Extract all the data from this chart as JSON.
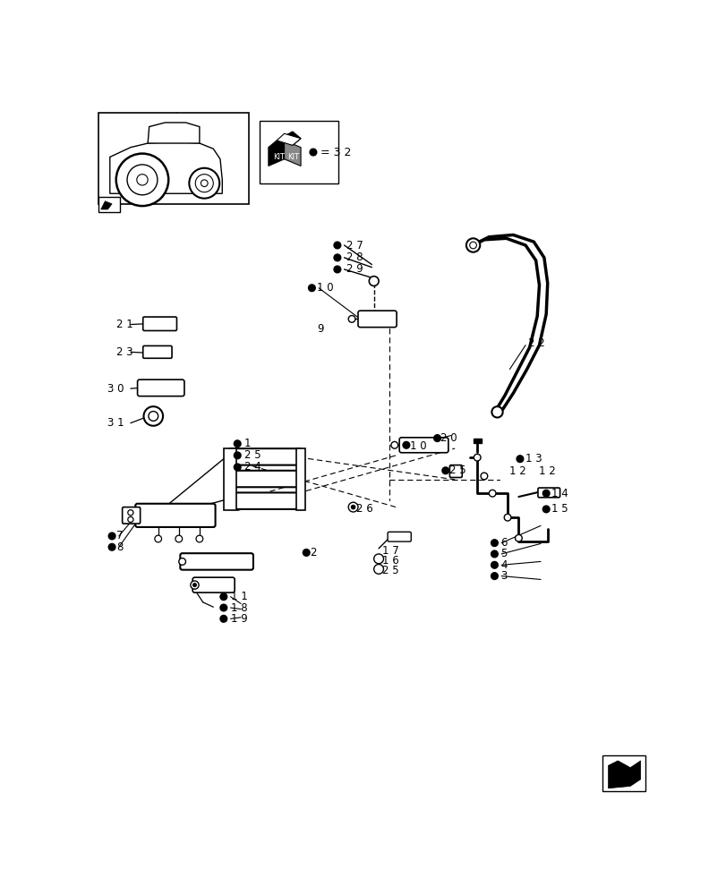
{
  "bg_color": "#ffffff",
  "lc": "#000000",
  "fig_w": 8.12,
  "fig_h": 10.0,
  "dpi": 100,
  "kit_text": "= 3 2",
  "labels": [
    [
      "21",
      55,
      315,
      false
    ],
    [
      "23",
      55,
      355,
      false
    ],
    [
      "30",
      40,
      405,
      false
    ],
    [
      "31",
      40,
      455,
      false
    ],
    [
      "1",
      218,
      488,
      true
    ],
    [
      "25",
      218,
      505,
      true
    ],
    [
      "24",
      218,
      528,
      true
    ],
    [
      "7",
      28,
      622,
      true
    ],
    [
      "8",
      28,
      638,
      true
    ],
    [
      "11",
      190,
      710,
      true
    ],
    [
      "18",
      190,
      726,
      true
    ],
    [
      "19",
      190,
      742,
      true
    ],
    [
      "2",
      310,
      646,
      true
    ],
    [
      "27",
      365,
      200,
      true
    ],
    [
      "28",
      365,
      218,
      true
    ],
    [
      "29",
      365,
      235,
      true
    ],
    [
      "10",
      318,
      262,
      true
    ],
    [
      "9",
      318,
      322,
      false
    ],
    [
      "10",
      455,
      492,
      true
    ],
    [
      "20",
      500,
      480,
      true
    ],
    [
      "26",
      380,
      582,
      false
    ],
    [
      "17",
      415,
      644,
      false
    ],
    [
      "16",
      415,
      658,
      true
    ],
    [
      "25",
      415,
      672,
      true
    ],
    [
      "2",
      310,
      646,
      true
    ],
    [
      "22",
      628,
      342,
      false
    ],
    [
      "25",
      510,
      527,
      true
    ],
    [
      "13",
      625,
      510,
      true
    ],
    [
      "12",
      602,
      528,
      false
    ],
    [
      "12",
      645,
      528,
      false
    ],
    [
      "14",
      665,
      560,
      true
    ],
    [
      "15",
      665,
      583,
      true
    ],
    [
      "6",
      585,
      632,
      true
    ],
    [
      "5",
      585,
      648,
      true
    ],
    [
      "4",
      585,
      664,
      true
    ],
    [
      "3",
      585,
      680,
      true
    ]
  ]
}
